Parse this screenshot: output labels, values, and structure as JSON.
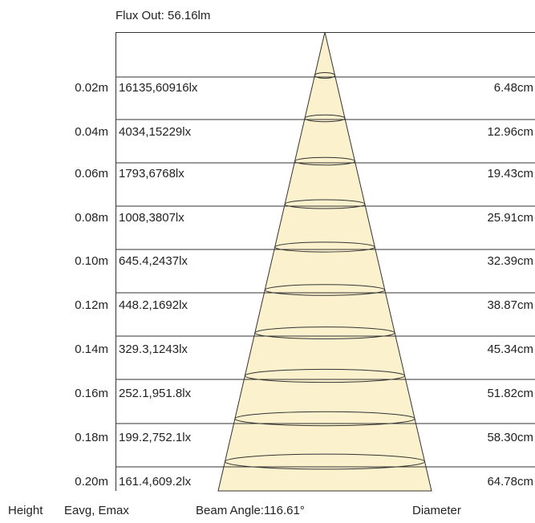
{
  "header": {
    "flux_out": "Flux Out: 56.16lm"
  },
  "footer": {
    "height_label": "Height",
    "eavg_emax_label": "Eavg, Emax",
    "beam_angle": "Beam Angle:116.61°",
    "diameter_label": "Diameter"
  },
  "colors": {
    "cone_fill": "#fbf1cc",
    "line": "#333333",
    "text": "#222222"
  },
  "rows": [
    {
      "height": "0.02m",
      "lux": "16135,60916lx",
      "diameter": "6.48cm"
    },
    {
      "height": "0.04m",
      "lux": "4034,15229lx",
      "diameter": "12.96cm"
    },
    {
      "height": "0.06m",
      "lux": "1793,6768lx",
      "diameter": "19.43cm"
    },
    {
      "height": "0.08m",
      "lux": "1008,3807lx",
      "diameter": "25.91cm"
    },
    {
      "height": "0.10m",
      "lux": "645.4,2437lx",
      "diameter": "32.39cm"
    },
    {
      "height": "0.12m",
      "lux": "448.2,1692lx",
      "diameter": "38.87cm"
    },
    {
      "height": "0.14m",
      "lux": "329.3,1243lx",
      "diameter": "45.34cm"
    },
    {
      "height": "0.16m",
      "lux": "252.1,951.8lx",
      "diameter": "51.82cm"
    },
    {
      "height": "0.18m",
      "lux": "199.2,752.1lx",
      "diameter": "58.30cm"
    },
    {
      "height": "0.20m",
      "lux": "161.4,609.2lx",
      "diameter": "64.78cm"
    }
  ]
}
